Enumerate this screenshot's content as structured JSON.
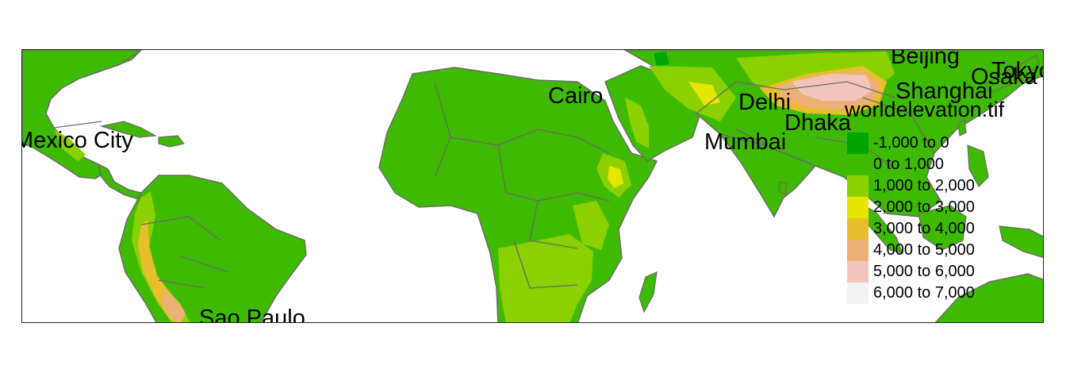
{
  "map": {
    "raster_name": "worldelevation.tif",
    "colors": {
      "water": "#ffffff",
      "border": "#6b6b6b"
    }
  },
  "cities": [
    {
      "id": "mexico-city",
      "label": "Mexico City"
    },
    {
      "id": "sao-paulo",
      "label": "Sao Paulo"
    },
    {
      "id": "cairo",
      "label": "Cairo"
    },
    {
      "id": "delhi",
      "label": "Delhi"
    },
    {
      "id": "mumbai",
      "label": "Mumbai"
    },
    {
      "id": "dhaka",
      "label": "Dhaka"
    },
    {
      "id": "beijing",
      "label": "Beijing"
    },
    {
      "id": "shanghai",
      "label": "Shanghai"
    },
    {
      "id": "osaka",
      "label": "Osaka"
    },
    {
      "id": "tokyo",
      "label": "Tokyo"
    }
  ],
  "legend": {
    "title": "worldelevation.tif",
    "classes": [
      {
        "label": "-1,000 to 0",
        "color": "#00a600"
      },
      {
        "label": "0 to 1,000",
        "color": "#3ebb00"
      },
      {
        "label": "1,000 to 2,000",
        "color": "#8bd000"
      },
      {
        "label": "2,000 to 3,000",
        "color": "#e6e600"
      },
      {
        "label": "3,000 to 4,000",
        "color": "#e6be2e"
      },
      {
        "label": "4,000 to 5,000",
        "color": "#ecb176"
      },
      {
        "label": "5,000 to 6,000",
        "color": "#f1c5bc"
      },
      {
        "label": "6,000 to 7,000",
        "color": "#f2f2f2"
      }
    ]
  }
}
